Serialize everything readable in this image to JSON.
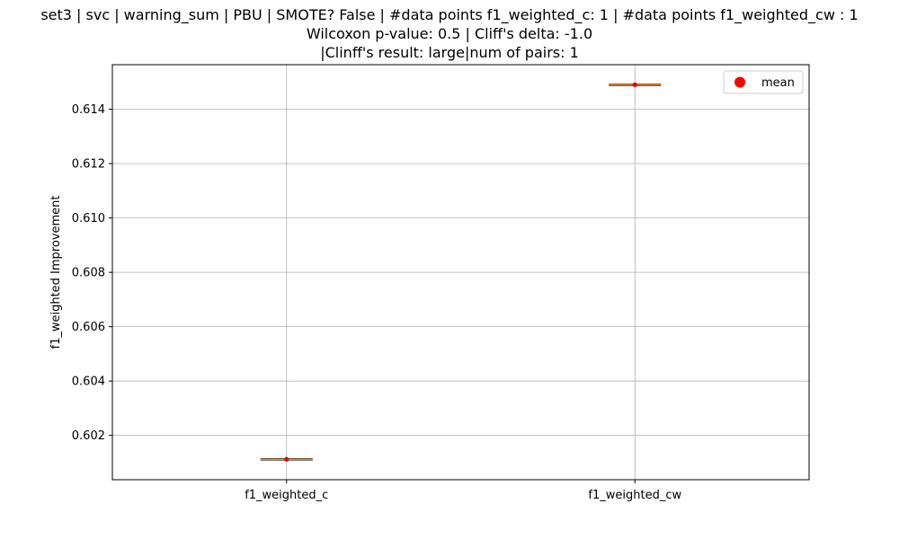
{
  "chart_data": {
    "type": "box",
    "title_lines": [
      "set3 | svc | warning_sum | PBU | SMOTE? False | #data points f1_weighted_c: 1 | #data points f1_weighted_cw : 1",
      "Wilcoxon p-value: 0.5 | Cliff's delta: -1.0",
      "|Clinff's result: large|num of pairs: 1"
    ],
    "xlabel": "",
    "ylabel": "f1_weighted Improvement",
    "categories": [
      "f1_weighted_c",
      "f1_weighted_cw"
    ],
    "values": [
      0.60112,
      0.6149
    ],
    "means": [
      0.60112,
      0.6149
    ],
    "ylim": [
      0.60037,
      0.61564
    ],
    "yticks": [
      0.602,
      0.604,
      0.606,
      0.608,
      0.61,
      0.612,
      0.614
    ],
    "ytick_labels": [
      "0.602",
      "0.604",
      "0.606",
      "0.608",
      "0.610",
      "0.612",
      "0.614"
    ],
    "grid": true,
    "legend": {
      "position": "top-right",
      "entries": [
        "mean"
      ]
    },
    "colors": {
      "median": "#ff7f0e",
      "mean": "#ff0000",
      "grid": "#b0b0b0",
      "axis": "#000000"
    }
  }
}
